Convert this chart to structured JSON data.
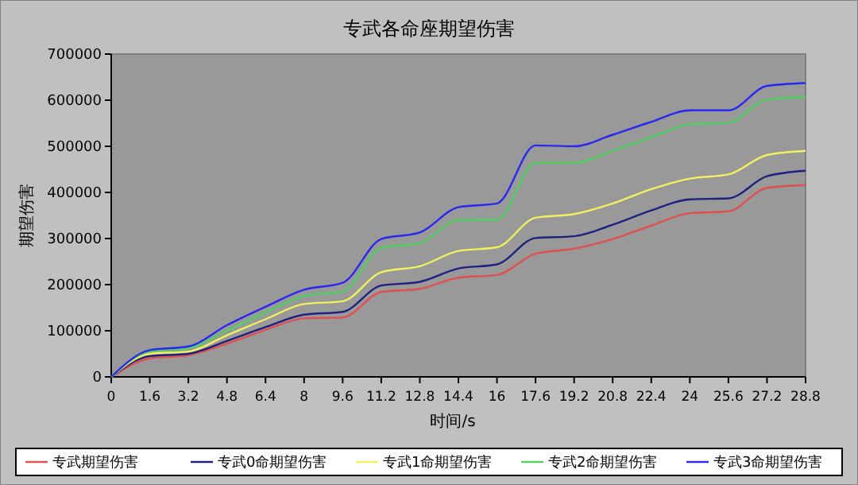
{
  "chart_data": {
    "type": "line",
    "title": "专武各命座期望伤害",
    "xlabel": "时间/s",
    "ylabel": "期望伤害",
    "x": [
      0,
      1.6,
      3.2,
      4.8,
      6.4,
      8,
      9.6,
      11.2,
      12.8,
      14.4,
      16,
      17.6,
      19.2,
      20.8,
      22.4,
      24,
      25.6,
      27.2,
      28.8
    ],
    "xlim": [
      0,
      28.8
    ],
    "xticks": [
      0,
      1.6,
      3.2,
      4.8,
      6.4,
      8,
      9.6,
      11.2,
      12.8,
      14.4,
      16,
      17.6,
      19.2,
      20.8,
      22.4,
      24,
      25.6,
      27.2,
      28.8
    ],
    "ylim": [
      0,
      700000
    ],
    "yticks": [
      0,
      100000,
      200000,
      300000,
      400000,
      500000,
      600000,
      700000
    ],
    "grid": false,
    "legend": "bottom",
    "marker": "none",
    "line_style": "solid",
    "series": [
      {
        "name": "专武期望伤害",
        "color": "#e05050",
        "values": [
          0,
          40000,
          47000,
          72000,
          102000,
          127000,
          129000,
          184000,
          191000,
          215000,
          221000,
          267000,
          278000,
          299000,
          328000,
          355000,
          359000,
          410000,
          416000
        ]
      },
      {
        "name": "专武0命期望伤害",
        "color": "#202080",
        "values": [
          0,
          45000,
          50000,
          78000,
          108000,
          135000,
          141000,
          198000,
          206000,
          235000,
          244000,
          301000,
          305000,
          330000,
          361000,
          385000,
          387000,
          435000,
          447000
        ]
      },
      {
        "name": "专武1命期望伤害",
        "color": "#f0f060",
        "values": [
          0,
          50000,
          55000,
          90000,
          125000,
          158000,
          164000,
          227000,
          240000,
          273000,
          281000,
          345000,
          353000,
          376000,
          407000,
          430000,
          439000,
          481000,
          490000
        ]
      },
      {
        "name": "专武2命期望伤害",
        "color": "#50d060",
        "values": [
          0,
          55000,
          62000,
          100000,
          140000,
          175000,
          185000,
          280000,
          290000,
          340000,
          341000,
          464000,
          464000,
          490000,
          519000,
          548000,
          551000,
          601000,
          607000
        ]
      },
      {
        "name": "专武3命期望伤害",
        "color": "#2828f0",
        "values": [
          0,
          58000,
          66000,
          112000,
          152000,
          189000,
          204000,
          299000,
          313000,
          368000,
          376000,
          502000,
          500000,
          525000,
          553000,
          578000,
          578000,
          631000,
          637000
        ]
      }
    ]
  }
}
